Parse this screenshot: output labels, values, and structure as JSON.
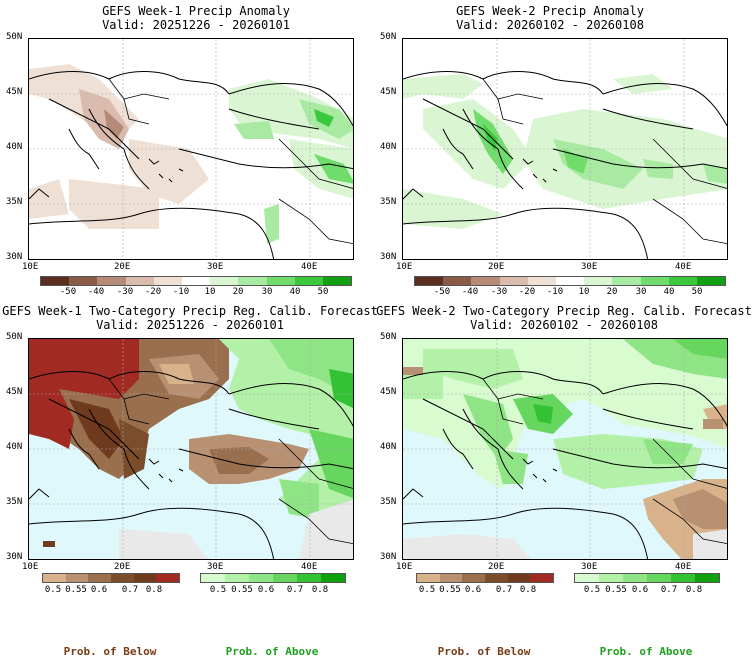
{
  "panels": [
    {
      "title1": "GEFS Week-1 Precip Anomaly",
      "title2": "Valid: 20251226 - 20260101"
    },
    {
      "title1": "GEFS Week-2 Precip Anomaly",
      "title2": "Valid: 20260102 - 20260108"
    },
    {
      "title1": "GEFS Week-1 Two-Category Precip Reg. Calib. Forecast",
      "title2": "Valid: 20251226 - 20260101"
    },
    {
      "title1": "GEFS Week-2 Two-Category Precip Reg. Calib. Forecast",
      "title2": "Valid: 20260102 - 20260108"
    }
  ],
  "axes": {
    "lat_labels": [
      "50N",
      "45N",
      "40N",
      "35N",
      "30N"
    ],
    "lon_labels": [
      "10E",
      "20E",
      "30E",
      "40E"
    ]
  },
  "anomaly_colorbar": {
    "ticks": [
      "-50",
      "-40",
      "-30",
      "-20",
      "-10",
      "10",
      "20",
      "30",
      "40",
      "50"
    ],
    "colors": [
      "#5a2e1e",
      "#8a5a46",
      "#b58b78",
      "#d9bcad",
      "#efe0d6",
      "#ffffff",
      "#d9f5d2",
      "#a8eaa1",
      "#6fdc6b",
      "#3cc83c",
      "#12a012"
    ]
  },
  "prob_below_colorbar": {
    "ticks": [
      "0.5",
      "0.55",
      "0.6",
      "0.7",
      "0.8"
    ],
    "colors": [
      "#d7b28a",
      "#b89072",
      "#9a6f4e",
      "#7c4d2a",
      "#6f3a1e",
      "#a12a22"
    ],
    "label": "Prob. of Below",
    "label_color": "#7a3b16"
  },
  "prob_above_colorbar": {
    "ticks": [
      "0.5",
      "0.55",
      "0.6",
      "0.7",
      "0.8"
    ],
    "colors": [
      "#d8fbcf",
      "#b4f1a8",
      "#8fe486",
      "#66d65f",
      "#33c233",
      "#0ea30e"
    ],
    "label": "Prob. of Above",
    "label_color": "#1fa01f"
  },
  "colors": {
    "sea_prob": "#dff8fb",
    "no_data": "#e9e9e9"
  }
}
